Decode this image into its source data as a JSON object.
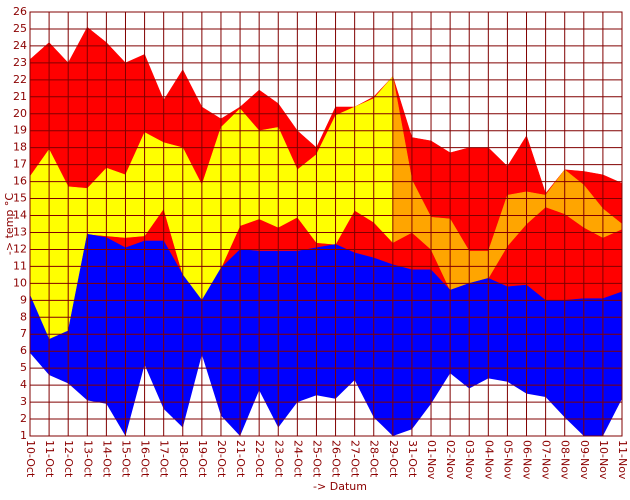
{
  "chart_data": {
    "type": "band",
    "y_label": "-> temp °C",
    "x_label": "-> Datum",
    "categories": [
      "10-Oct",
      "11-Oct",
      "12-Oct",
      "13-Oct",
      "14-Oct",
      "15-Oct",
      "16-Oct",
      "17-Oct",
      "18-Oct",
      "19-Oct",
      "20-Oct",
      "21-Oct",
      "22-Oct",
      "23-Oct",
      "24-Oct",
      "25-Oct",
      "26-Oct",
      "27-Oct",
      "28-Oct",
      "29-Oct",
      "31-Oct",
      "01-Nov",
      "02-Nov",
      "03-Nov",
      "04-Nov",
      "05-Nov",
      "06-Nov",
      "07-Nov",
      "08-Nov",
      "09-Nov",
      "10-Nov",
      "11-Nov"
    ],
    "series": [
      {
        "color": "#ff0000",
        "values": [
          23.2,
          24.2,
          23,
          25.1,
          24.2,
          23,
          23.5,
          20.8,
          22.6,
          20.4,
          19.7,
          20.4,
          21.4,
          20.6,
          19,
          18,
          20.4,
          20.4,
          21,
          22.2,
          18.6,
          18.4,
          17.7,
          18,
          18,
          16.9,
          18.7,
          15.3,
          16.7,
          16.6,
          16.4,
          15.9
        ]
      },
      {
        "color": "#ffff00",
        "values": [
          16.3,
          17.9,
          15.7,
          15.6,
          16.8,
          16.4,
          18.9,
          18.3,
          18,
          15.8,
          19.2,
          20.3,
          19,
          19.2,
          16.7,
          17.6,
          19.9,
          20.4,
          20.9,
          22.2,
          null,
          null,
          null,
          null,
          null,
          null,
          null,
          null,
          null,
          null,
          null,
          null
        ],
        "low": [
          9.2,
          6.7,
          7.2,
          12.9,
          12.8,
          12.7,
          12.8,
          14.4,
          10.5,
          9,
          10.9,
          13.4,
          13.8,
          13.3,
          13.9,
          12.4,
          12.3,
          14.3,
          13.6,
          12.4,
          null,
          null,
          null,
          null,
          null,
          null,
          null,
          null,
          null,
          null,
          null,
          null
        ]
      },
      {
        "color": "#ffa500",
        "values": [
          null,
          null,
          null,
          null,
          null,
          null,
          null,
          null,
          null,
          null,
          null,
          null,
          null,
          null,
          null,
          null,
          null,
          null,
          null,
          22.2,
          16.1,
          13.9,
          13.8,
          11.9,
          11.9,
          15.2,
          15.4,
          15.2,
          16.7,
          15.8,
          14.4,
          13.5
        ],
        "low": [
          null,
          null,
          null,
          null,
          null,
          null,
          null,
          null,
          null,
          null,
          null,
          null,
          null,
          null,
          null,
          null,
          null,
          null,
          null,
          12.4,
          13,
          12,
          9.6,
          10,
          10.3,
          12.2,
          13.5,
          14.5,
          14.1,
          13.3,
          12.7,
          13.2
        ]
      },
      {
        "color": "#0000ff",
        "values": [
          9.3,
          6.7,
          7.2,
          12.9,
          12.7,
          12.1,
          12.5,
          12.5,
          10.5,
          9,
          10.9,
          12,
          11.9,
          11.9,
          11.9,
          12.1,
          12.3,
          11.8,
          11.5,
          11.1,
          10.8,
          10.8,
          9.6,
          10,
          10.3,
          9.8,
          9.9,
          9,
          9,
          9.1,
          9.1,
          9.5
        ],
        "low": [
          5.9,
          4.6,
          4.1,
          3.1,
          2.9,
          1,
          5.2,
          2.6,
          1.5,
          5.8,
          2.2,
          1,
          3.7,
          1.5,
          3,
          3.4,
          3.2,
          4.3,
          2.1,
          1,
          1.4,
          2.9,
          4.7,
          3.8,
          4.4,
          4.2,
          3.5,
          3.3,
          2.1,
          1,
          1,
          3.2
        ]
      }
    ],
    "ylim": [
      1,
      26
    ],
    "yticks": [
      1,
      2,
      3,
      4,
      5,
      6,
      7,
      8,
      9,
      10,
      11,
      12,
      13,
      14,
      15,
      16,
      17,
      18,
      19,
      20,
      21,
      22,
      23,
      24,
      25,
      26
    ],
    "grid": true,
    "grid_color": "#800000"
  }
}
